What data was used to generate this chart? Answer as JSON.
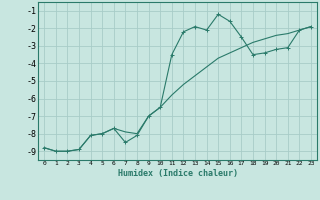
{
  "xlabel": "Humidex (Indice chaleur)",
  "ylabel": "",
  "background_color": "#c8e6e0",
  "grid_color": "#a8ccc8",
  "line_color": "#2a7a6a",
  "marker_color": "#2a7a6a",
  "x_line1": [
    0,
    1,
    2,
    3,
    4,
    5,
    6,
    7,
    8,
    9,
    10,
    11,
    12,
    13,
    14,
    15,
    16,
    17,
    18,
    19,
    20,
    21,
    22,
    23
  ],
  "y_line1": [
    -8.8,
    -9.0,
    -9.0,
    -8.9,
    -8.1,
    -8.0,
    -7.7,
    -8.5,
    -8.1,
    -7.0,
    -6.5,
    -3.5,
    -2.2,
    -1.9,
    -2.1,
    -1.2,
    -1.6,
    -2.5,
    -3.5,
    -3.4,
    -3.2,
    -3.1,
    -2.1,
    -1.9
  ],
  "x_line2": [
    0,
    1,
    2,
    3,
    4,
    5,
    6,
    7,
    8,
    9,
    10,
    11,
    12,
    13,
    14,
    15,
    16,
    17,
    18,
    19,
    20,
    21,
    22,
    23
  ],
  "y_line2": [
    -8.8,
    -9.0,
    -9.0,
    -8.9,
    -8.1,
    -8.0,
    -7.7,
    -7.9,
    -8.0,
    -7.0,
    -6.5,
    -5.8,
    -5.2,
    -4.7,
    -4.2,
    -3.7,
    -3.4,
    -3.1,
    -2.8,
    -2.6,
    -2.4,
    -2.3,
    -2.1,
    -1.9
  ],
  "ylim": [
    -9.5,
    -0.5
  ],
  "xlim": [
    -0.5,
    23.5
  ],
  "yticks": [
    -9,
    -8,
    -7,
    -6,
    -5,
    -4,
    -3,
    -2,
    -1
  ],
  "xticks": [
    0,
    1,
    2,
    3,
    4,
    5,
    6,
    7,
    8,
    9,
    10,
    11,
    12,
    13,
    14,
    15,
    16,
    17,
    18,
    19,
    20,
    21,
    22,
    23
  ],
  "xlabel_fontsize": 6,
  "ytick_fontsize": 6,
  "xtick_fontsize": 4.5,
  "linewidth": 0.8,
  "markersize": 3,
  "markeredgewidth": 0.7
}
